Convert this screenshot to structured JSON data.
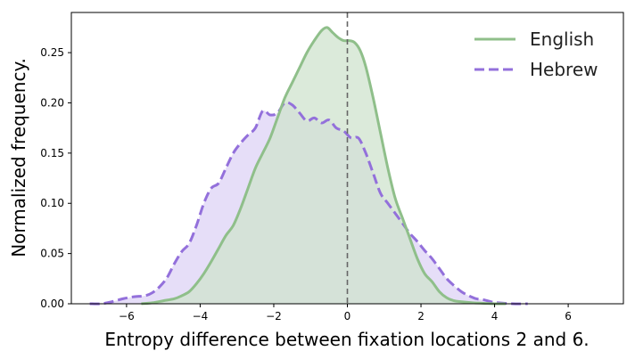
{
  "chart_data": {
    "type": "area",
    "xlabel": "Entropy difference between fixation locations 2 and 6.",
    "ylabel": "Normalized frequency.",
    "xlim": [
      -7.5,
      7.5
    ],
    "ylim": [
      0.0,
      0.29
    ],
    "xticks": [
      -6,
      -4,
      -2,
      0,
      2,
      4,
      6
    ],
    "xtick_labels": [
      "−6",
      "−4",
      "−2",
      "0",
      "2",
      "4",
      "6"
    ],
    "yticks": [
      0.0,
      0.05,
      0.1,
      0.15,
      0.2,
      0.25
    ],
    "ytick_labels": [
      "0.00",
      "0.05",
      "0.10",
      "0.15",
      "0.20",
      "0.25"
    ],
    "reference_line": {
      "x": 0,
      "style": "dashed",
      "color": "#666666"
    },
    "grid": false,
    "legend_position": "top-right",
    "series": [
      {
        "name": "English",
        "color": "#8fbf8a",
        "fill": "#cfe3cd",
        "line_style": "solid",
        "x": [
          -5.6,
          -5.3,
          -5.0,
          -4.7,
          -4.5,
          -4.3,
          -4.1,
          -3.9,
          -3.7,
          -3.5,
          -3.3,
          -3.1,
          -2.9,
          -2.7,
          -2.5,
          -2.3,
          -2.1,
          -1.9,
          -1.7,
          -1.5,
          -1.3,
          -1.1,
          -0.9,
          -0.7,
          -0.55,
          -0.4,
          -0.25,
          -0.1,
          0.05,
          0.2,
          0.35,
          0.5,
          0.7,
          0.9,
          1.1,
          1.3,
          1.5,
          1.7,
          1.9,
          2.1,
          2.3,
          2.5,
          2.7,
          2.9,
          3.1,
          3.4,
          3.7,
          4.0,
          4.3
        ],
        "y": [
          0.0,
          0.001,
          0.003,
          0.005,
          0.008,
          0.012,
          0.02,
          0.03,
          0.042,
          0.055,
          0.068,
          0.078,
          0.095,
          0.115,
          0.135,
          0.15,
          0.165,
          0.185,
          0.205,
          0.22,
          0.235,
          0.25,
          0.262,
          0.272,
          0.275,
          0.27,
          0.265,
          0.262,
          0.262,
          0.26,
          0.252,
          0.236,
          0.205,
          0.17,
          0.135,
          0.105,
          0.085,
          0.065,
          0.045,
          0.03,
          0.022,
          0.012,
          0.006,
          0.003,
          0.002,
          0.001,
          0.0005,
          0.0,
          0.0
        ]
      },
      {
        "name": "Hebrew",
        "color": "#9370db",
        "fill": "#ddd3f5",
        "line_style": "dashed",
        "x": [
          -7.0,
          -6.7,
          -6.4,
          -6.1,
          -5.8,
          -5.5,
          -5.3,
          -5.1,
          -4.9,
          -4.7,
          -4.5,
          -4.3,
          -4.1,
          -3.9,
          -3.7,
          -3.5,
          -3.3,
          -3.1,
          -2.9,
          -2.7,
          -2.5,
          -2.3,
          -2.1,
          -1.9,
          -1.7,
          -1.5,
          -1.3,
          -1.1,
          -0.9,
          -0.7,
          -0.5,
          -0.3,
          -0.1,
          0.1,
          0.3,
          0.5,
          0.7,
          0.9,
          1.1,
          1.3,
          1.5,
          1.7,
          1.9,
          2.1,
          2.3,
          2.5,
          2.7,
          2.9,
          3.1,
          3.3,
          3.5,
          3.7,
          3.9,
          4.1,
          4.5,
          4.9
        ],
        "y": [
          0.0,
          0.0,
          0.002,
          0.005,
          0.007,
          0.008,
          0.011,
          0.017,
          0.026,
          0.04,
          0.052,
          0.06,
          0.078,
          0.1,
          0.115,
          0.12,
          0.135,
          0.15,
          0.16,
          0.168,
          0.175,
          0.192,
          0.188,
          0.19,
          0.2,
          0.198,
          0.19,
          0.182,
          0.185,
          0.18,
          0.183,
          0.175,
          0.172,
          0.165,
          0.165,
          0.15,
          0.13,
          0.11,
          0.1,
          0.09,
          0.08,
          0.07,
          0.062,
          0.053,
          0.045,
          0.035,
          0.025,
          0.018,
          0.012,
          0.008,
          0.005,
          0.004,
          0.002,
          0.001,
          0.0,
          0.0
        ]
      }
    ]
  }
}
